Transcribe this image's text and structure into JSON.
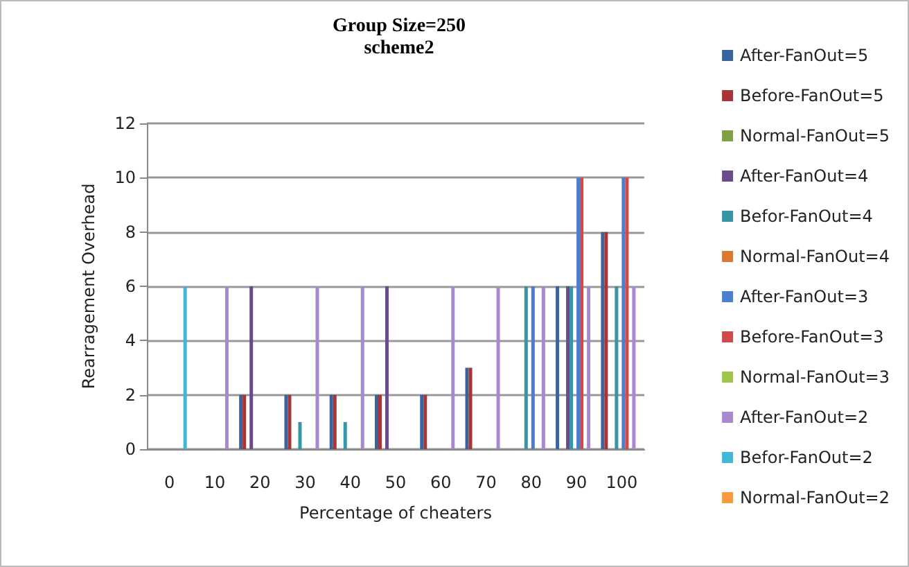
{
  "chart_data": {
    "type": "bar",
    "title": "Group Size=250",
    "subtitle": "scheme2",
    "xlabel": "Percentage of cheaters",
    "ylabel": "Rearragement Overhead",
    "categories": [
      "0",
      "10",
      "20",
      "30",
      "40",
      "50",
      "60",
      "70",
      "80",
      "90",
      "100"
    ],
    "series": [
      {
        "name": "After-FanOut=5",
        "color": "#3a64a0",
        "values": [
          0,
          0,
          2,
          2,
          2,
          2,
          2,
          3,
          0,
          6,
          8
        ]
      },
      {
        "name": "Before-FanOut=5",
        "color": "#a83434",
        "values": [
          0,
          0,
          2,
          2,
          2,
          2,
          2,
          3,
          0,
          0,
          8
        ]
      },
      {
        "name": "Normal-FanOut=5",
        "color": "#7fa046",
        "values": [
          0,
          0,
          0,
          0,
          0,
          0,
          0,
          0,
          0,
          0,
          0
        ]
      },
      {
        "name": "After-FanOut=4",
        "color": "#6a4c8c",
        "values": [
          0,
          0,
          6,
          0,
          0,
          6,
          0,
          0,
          0,
          6,
          0
        ]
      },
      {
        "name": "Befor-FanOut=4",
        "color": "#3596a8",
        "values": [
          0,
          0,
          0,
          1,
          1,
          0,
          0,
          0,
          6,
          6,
          6
        ]
      },
      {
        "name": "Normal-FanOut=4",
        "color": "#d9792f",
        "values": [
          0,
          0,
          0,
          0,
          0,
          0,
          0,
          0,
          0,
          0,
          0
        ]
      },
      {
        "name": "After-FanOut=3",
        "color": "#4a7fd0",
        "values": [
          0,
          0,
          0,
          0,
          0,
          0,
          0,
          0,
          6,
          10,
          10
        ]
      },
      {
        "name": "Before-FanOut=3",
        "color": "#d04a4a",
        "values": [
          0,
          0,
          0,
          0,
          0,
          0,
          0,
          0,
          0,
          10,
          10
        ]
      },
      {
        "name": "Normal-FanOut=3",
        "color": "#9bc84a",
        "values": [
          0,
          0,
          0,
          0,
          0,
          0,
          0,
          0,
          0,
          0,
          0
        ]
      },
      {
        "name": "After-FanOut=2",
        "color": "#a888d0",
        "values": [
          0,
          6,
          0,
          6,
          6,
          0,
          6,
          6,
          6,
          6,
          6
        ]
      },
      {
        "name": "Befor-FanOut=2",
        "color": "#3fb8d8",
        "values": [
          6,
          0,
          0,
          0,
          0,
          0,
          0,
          0,
          0,
          0,
          0
        ]
      },
      {
        "name": "Normal-FanOut=2",
        "color": "#f89b3b",
        "values": [
          0,
          0,
          0,
          0,
          0,
          0,
          0,
          0,
          0,
          0,
          0
        ]
      }
    ],
    "ylim": [
      0,
      12
    ],
    "yticks": [
      0,
      2,
      4,
      6,
      8,
      10,
      12
    ],
    "grid": "y",
    "legend": "right"
  }
}
